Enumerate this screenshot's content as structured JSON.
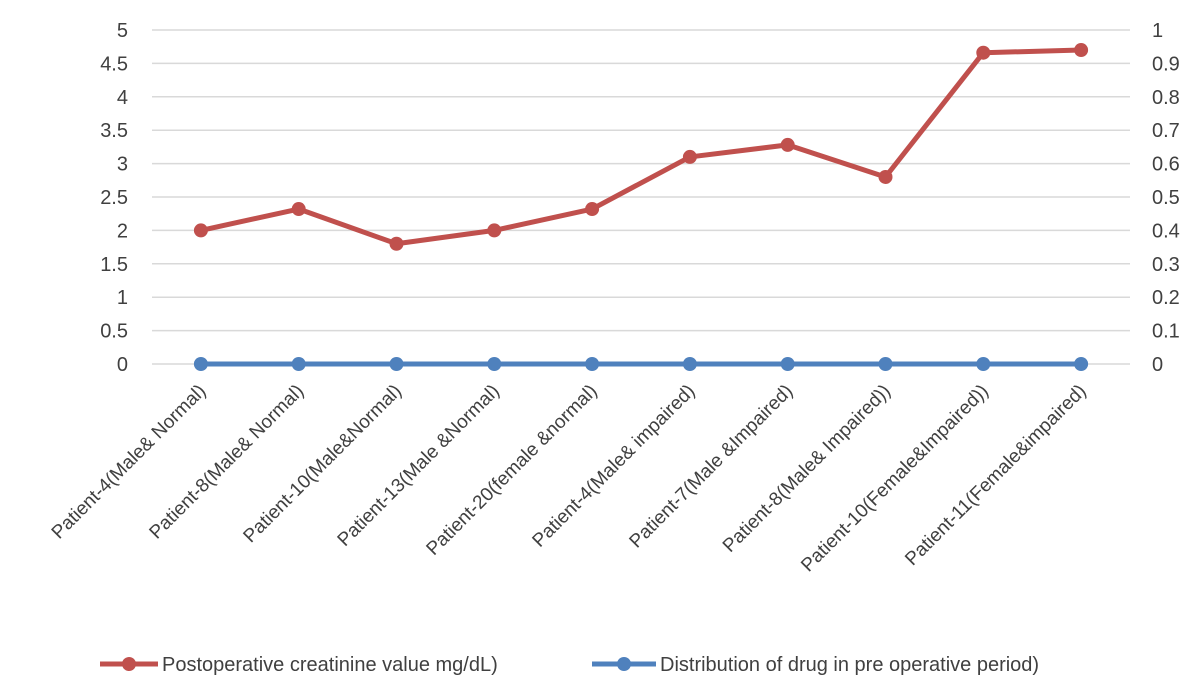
{
  "chart_data": {
    "type": "line",
    "categories": [
      "Patient-4(Male& Normal)",
      "Patient-8(Male& Normal)",
      "Patient-10(Male&Normal)",
      "Patient-13(Male &Normal)",
      "Patient-20(female &normal)",
      "Patient-4(Male& impaired)",
      "Patient-7(Male &Impaired)",
      "Patient-8(Male& Impaired))",
      "Patient-10(Female&Impaired))",
      "Patient-11(Female&impaired)"
    ],
    "series": [
      {
        "name": "Postoperative creatinine value mg/dL)",
        "axis": "left",
        "color": "#c0504d",
        "values": [
          2.0,
          2.32,
          1.8,
          2.0,
          2.32,
          3.1,
          3.28,
          2.8,
          4.66,
          4.7
        ]
      },
      {
        "name": "Distribution of drug in pre operative period)",
        "axis": "right",
        "color": "#4f81bd",
        "values": [
          0,
          0,
          0,
          0,
          0,
          0,
          0,
          0,
          0,
          0
        ]
      }
    ],
    "y_left": {
      "min": 0,
      "max": 5,
      "ticks": [
        "0",
        "0.5",
        "1",
        "1.5",
        "2",
        "2.5",
        "3",
        "3.5",
        "4",
        "4.5",
        "5"
      ]
    },
    "y_right": {
      "min": 0,
      "max": 1,
      "ticks": [
        "0",
        "0.1",
        "0.2",
        "0.3",
        "0.4",
        "0.5",
        "0.6",
        "0.7",
        "0.8",
        "0.9",
        "1"
      ]
    },
    "grid": true,
    "legend_position": "bottom",
    "title": "",
    "xlabel": "",
    "ylabel": ""
  }
}
